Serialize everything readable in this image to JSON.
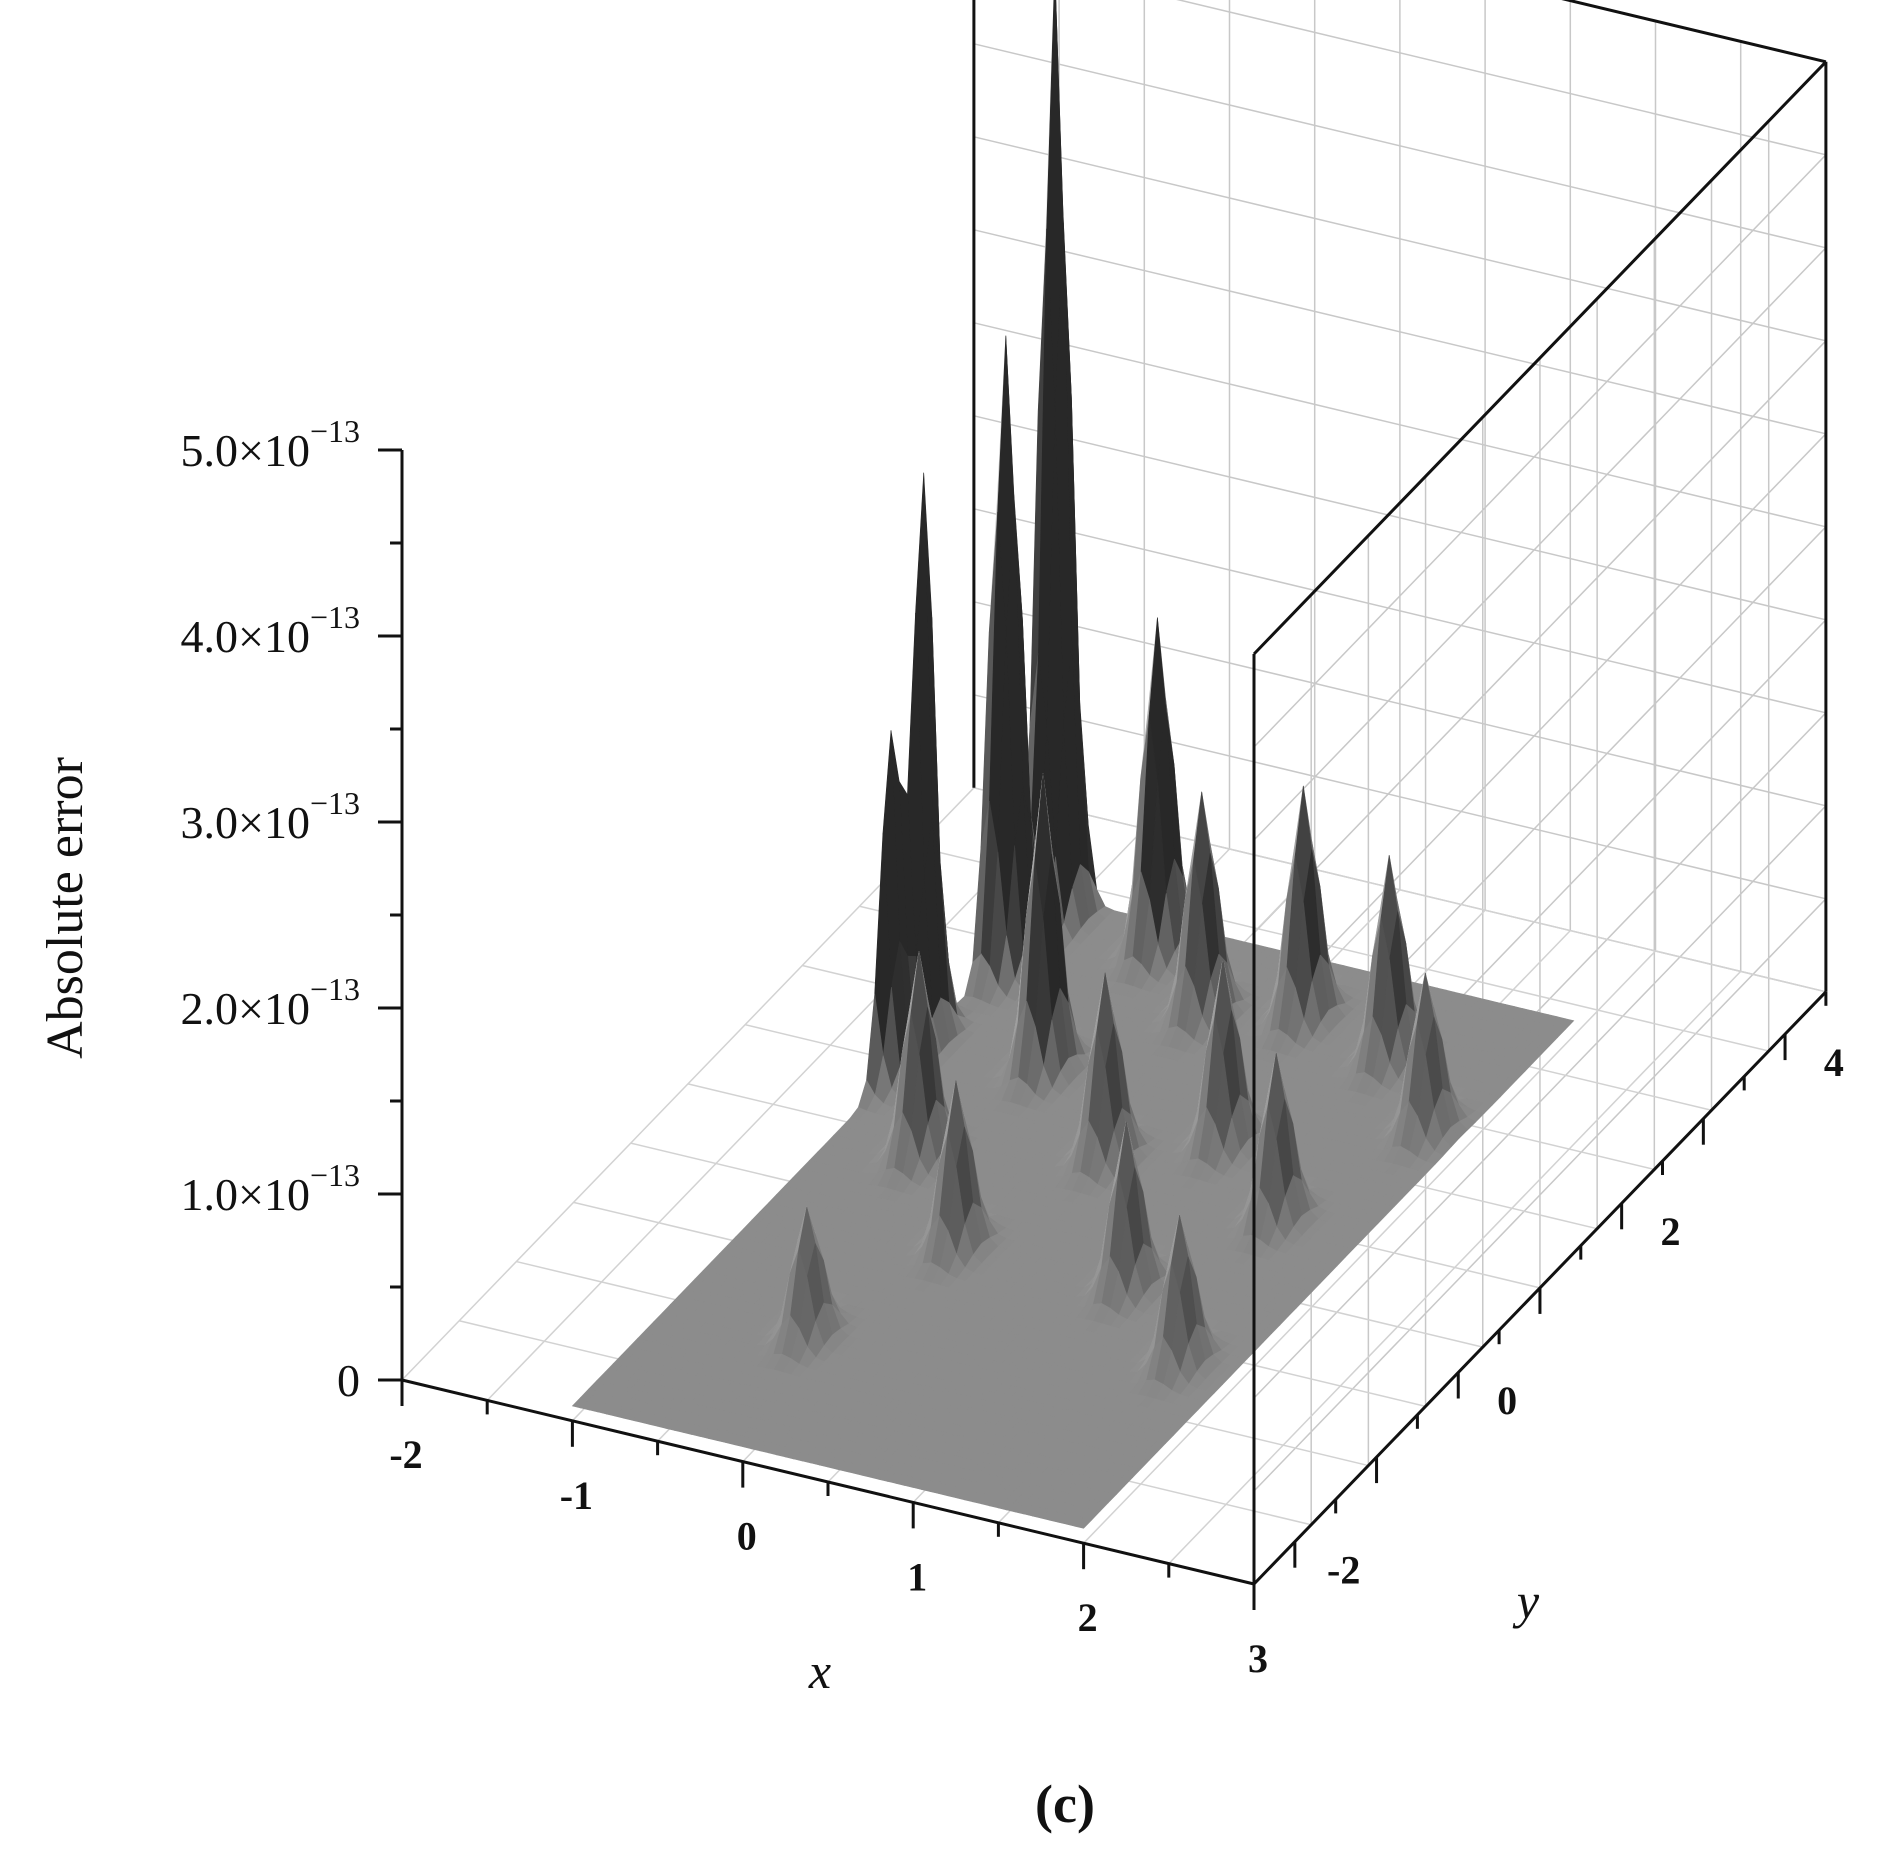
{
  "chart_data": {
    "type": "surface3d",
    "panel_label": "(c)",
    "zlabel": "Absolute error",
    "xlabel": "x",
    "ylabel": "y",
    "xlim": [
      -2,
      3
    ],
    "ylim": [
      -3,
      4
    ],
    "zlim": [
      0,
      5e-13
    ],
    "x_ticks": [
      {
        "value": -2,
        "label": "-2"
      },
      {
        "value": -1,
        "label": "-1"
      },
      {
        "value": 0,
        "label": "0"
      },
      {
        "value": 1,
        "label": "1"
      },
      {
        "value": 2,
        "label": "2"
      },
      {
        "value": 3,
        "label": "3"
      }
    ],
    "y_ticks": [
      {
        "value": -2,
        "label": "-2"
      },
      {
        "value": 0,
        "label": "0"
      },
      {
        "value": 2,
        "label": "2"
      },
      {
        "value": 4,
        "label": "4"
      }
    ],
    "z_ticks": [
      {
        "value": 0,
        "mantissa": "0",
        "exponent": ""
      },
      {
        "value": 1e-13,
        "mantissa": "1.0×10",
        "exponent": "−13"
      },
      {
        "value": 2e-13,
        "mantissa": "2.0×10",
        "exponent": "−13"
      },
      {
        "value": 3e-13,
        "mantissa": "3.0×10",
        "exponent": "−13"
      },
      {
        "value": 4e-13,
        "mantissa": "4.0×10",
        "exponent": "−13"
      },
      {
        "value": 5e-13,
        "mantissa": "5.0×10",
        "exponent": "−13"
      }
    ],
    "domain": {
      "x": [
        -1,
        2
      ],
      "y": [
        -3,
        3
      ]
    },
    "peaks": [
      {
        "x": -1.05,
        "y": 1.3,
        "z": 4.15e-13
      },
      {
        "x": -1.05,
        "y": 0.9,
        "z": 2.5e-13
      },
      {
        "x": -0.95,
        "y": 2.8,
        "z": 5.1e-13
      },
      {
        "x": -0.95,
        "y": 2.2,
        "z": 3.4e-13
      },
      {
        "x": -0.3,
        "y": 2.7,
        "z": 1.8e-13
      },
      {
        "x": -0.3,
        "y": 1.3,
        "z": 1.6e-13
      },
      {
        "x": -0.5,
        "y": 0.2,
        "z": 1.1e-13
      },
      {
        "x": 0.2,
        "y": 2.2,
        "z": 1.2e-13
      },
      {
        "x": 0.4,
        "y": 0.6,
        "z": 1e-13
      },
      {
        "x": 0.7,
        "y": 2.4,
        "z": 1.25e-13
      },
      {
        "x": 0.9,
        "y": 1.0,
        "z": 1e-13
      },
      {
        "x": 1.1,
        "y": -0.6,
        "z": 9e-14
      },
      {
        "x": 1.3,
        "y": 2.2,
        "z": 1.1e-13
      },
      {
        "x": 1.5,
        "y": 0.4,
        "z": 9e-14
      },
      {
        "x": 1.7,
        "y": -1.2,
        "z": 8e-14
      },
      {
        "x": 1.8,
        "y": 1.6,
        "z": 8.5e-14
      },
      {
        "x": 0.1,
        "y": -0.6,
        "z": 9e-14
      },
      {
        "x": -0.2,
        "y": -1.8,
        "z": 7e-14
      }
    ]
  }
}
